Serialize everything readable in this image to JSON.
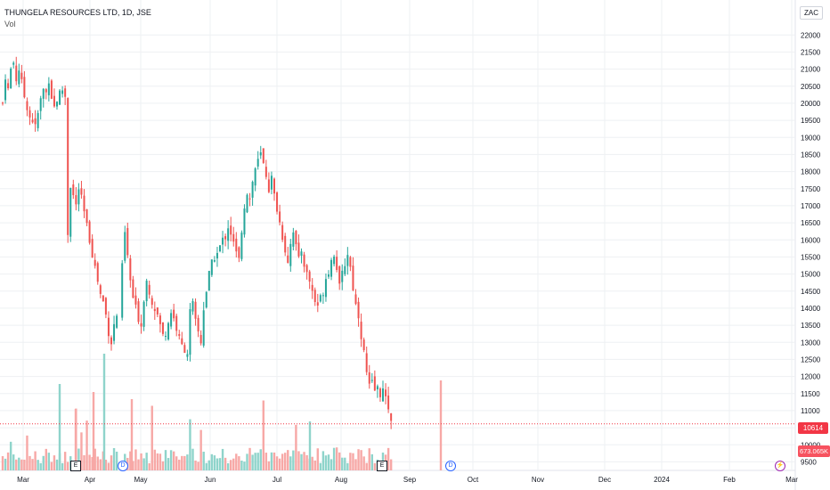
{
  "legend": {
    "symbol": "THUNGELA RESOURCES LTD, 1D, JSE",
    "vol": "Vol"
  },
  "currency": "ZAC",
  "last_price": "10614",
  "last_volume": "673.065K",
  "colors": {
    "up": "#26a69a",
    "down": "#ef5350",
    "vol_up": "#8fd4cb",
    "vol_down": "#f7a8a6",
    "grid": "#eef0f3",
    "last_price": "#f23645"
  },
  "events": [
    {
      "type": "earnings",
      "icon": "E",
      "date": "Mar 28"
    },
    {
      "type": "dividend",
      "icon": "D",
      "date": "Apr 19"
    },
    {
      "type": "earnings",
      "icon": "E",
      "date": "Aug 28"
    },
    {
      "type": "dividend",
      "icon": "D",
      "date": "Sep 27"
    },
    {
      "type": "split",
      "icon": "⚡",
      "date": "Feb 28"
    }
  ],
  "chart_data": {
    "type": "candlestick",
    "title": "THUNGELA RESOURCES LTD, 1D, JSE",
    "y_axis": {
      "ticks": [
        9500,
        10000,
        10500,
        11000,
        11500,
        12000,
        12500,
        13000,
        13500,
        14000,
        14500,
        15000,
        15500,
        16000,
        16500,
        17000,
        17500,
        18000,
        18500,
        19000,
        19500,
        20000,
        20500,
        21000,
        21500,
        22000
      ],
      "ylim": [
        9250,
        22450
      ]
    },
    "x_axis": {
      "ticks": [
        "Mar",
        "Apr",
        "May",
        "Jun",
        "Jul",
        "Aug",
        "Sep",
        "Oct",
        "Nov",
        "Dec",
        "2024",
        "Feb",
        "Mar"
      ]
    },
    "grid": true,
    "series": [
      {
        "name": "Price",
        "approx_close_path": [
          [
            0,
            20000
          ],
          [
            4,
            20800
          ],
          [
            8,
            20400
          ],
          [
            12,
            21000
          ],
          [
            16,
            21200
          ],
          [
            20,
            20700
          ],
          [
            24,
            21000
          ],
          [
            28,
            20600
          ],
          [
            32,
            20200
          ],
          [
            36,
            19900
          ],
          [
            40,
            19600
          ],
          [
            44,
            19500
          ],
          [
            48,
            19300
          ],
          [
            52,
            19700
          ],
          [
            56,
            20100
          ],
          [
            60,
            20400
          ],
          [
            64,
            20300
          ],
          [
            68,
            20700
          ],
          [
            72,
            20200
          ],
          [
            76,
            19900
          ],
          [
            80,
            20100
          ],
          [
            84,
            20300
          ],
          [
            88,
            20400
          ],
          [
            92,
            20200
          ],
          [
            96,
            16200
          ],
          [
            100,
            17600
          ],
          [
            104,
            17300
          ],
          [
            108,
            17000
          ],
          [
            112,
            17500
          ],
          [
            116,
            17200
          ],
          [
            120,
            16800
          ],
          [
            124,
            16400
          ],
          [
            128,
            16000
          ],
          [
            132,
            15600
          ],
          [
            136,
            15200
          ],
          [
            140,
            14800
          ],
          [
            144,
            14400
          ],
          [
            148,
            14200
          ],
          [
            152,
            13800
          ],
          [
            156,
            13300
          ],
          [
            160,
            13000
          ],
          [
            164,
            13500
          ],
          [
            168,
            13800
          ],
          [
            172,
            14200
          ],
          [
            176,
            15200
          ],
          [
            180,
            16200
          ],
          [
            184,
            15500
          ],
          [
            188,
            14800
          ],
          [
            192,
            14300
          ],
          [
            196,
            14000
          ],
          [
            200,
            13700
          ],
          [
            204,
            13500
          ],
          [
            208,
            14300
          ],
          [
            212,
            14800
          ],
          [
            216,
            14500
          ],
          [
            220,
            14200
          ],
          [
            224,
            14000
          ],
          [
            228,
            13800
          ],
          [
            232,
            13500
          ],
          [
            236,
            13200
          ],
          [
            240,
            13300
          ],
          [
            244,
            13600
          ],
          [
            248,
            13900
          ],
          [
            252,
            13700
          ],
          [
            256,
            13400
          ],
          [
            260,
            13100
          ],
          [
            264,
            12900
          ],
          [
            268,
            12800
          ],
          [
            272,
            12700
          ],
          [
            276,
            13900
          ],
          [
            280,
            14100
          ],
          [
            284,
            13600
          ],
          [
            288,
            13300
          ],
          [
            292,
            13000
          ],
          [
            296,
            14000
          ],
          [
            300,
            14500
          ],
          [
            304,
            15000
          ],
          [
            308,
            15300
          ],
          [
            312,
            15500
          ],
          [
            316,
            15600
          ],
          [
            320,
            15800
          ],
          [
            324,
            16000
          ],
          [
            328,
            16100
          ],
          [
            332,
            16400
          ],
          [
            336,
            16200
          ],
          [
            340,
            15900
          ],
          [
            344,
            15600
          ],
          [
            348,
            15400
          ],
          [
            352,
            16300
          ],
          [
            356,
            17000
          ],
          [
            360,
            17400
          ],
          [
            364,
            17200
          ],
          [
            368,
            17700
          ],
          [
            372,
            18100
          ],
          [
            376,
            18300
          ],
          [
            380,
            18500
          ],
          [
            384,
            18200
          ],
          [
            388,
            17900
          ],
          [
            392,
            17500
          ],
          [
            396,
            17800
          ],
          [
            400,
            17300
          ],
          [
            404,
            16900
          ],
          [
            408,
            16500
          ],
          [
            412,
            16100
          ],
          [
            416,
            15700
          ],
          [
            420,
            15400
          ],
          [
            424,
            15900
          ],
          [
            428,
            16300
          ],
          [
            432,
            15800
          ],
          [
            436,
            15400
          ],
          [
            440,
            15700
          ],
          [
            444,
            15300
          ],
          [
            448,
            15000
          ],
          [
            452,
            14800
          ],
          [
            456,
            14500
          ],
          [
            460,
            14200
          ],
          [
            464,
            14100
          ],
          [
            468,
            14300
          ],
          [
            472,
            14500
          ],
          [
            476,
            14900
          ],
          [
            480,
            15100
          ],
          [
            484,
            15400
          ],
          [
            488,
            15600
          ],
          [
            492,
            15200
          ],
          [
            496,
            14600
          ],
          [
            500,
            15000
          ],
          [
            504,
            15300
          ],
          [
            508,
            15600
          ],
          [
            512,
            15200
          ],
          [
            516,
            14600
          ],
          [
            520,
            14100
          ],
          [
            524,
            13800
          ],
          [
            528,
            13200
          ],
          [
            532,
            12700
          ],
          [
            536,
            12100
          ],
          [
            540,
            11700
          ],
          [
            544,
            11800
          ],
          [
            548,
            11600
          ],
          [
            552,
            11650
          ],
          [
            556,
            11500
          ],
          [
            560,
            11600
          ],
          [
            564,
            11300
          ],
          [
            568,
            11100
          ],
          [
            572,
            10614
          ]
        ]
      },
      {
        "name": "Vol"
      }
    ],
    "last_close": 10614
  }
}
